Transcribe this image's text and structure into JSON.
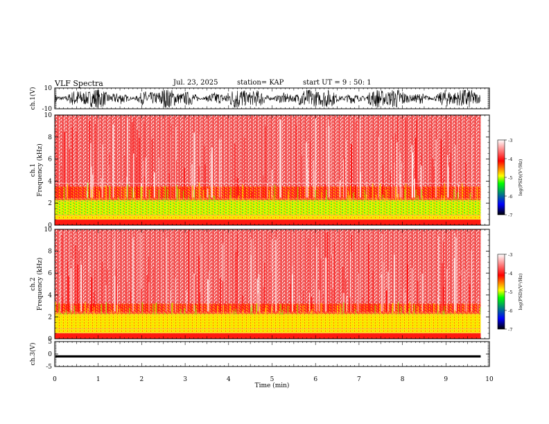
{
  "header": {
    "title": "VLF Spectra",
    "date": "Jul. 23, 2025",
    "station": "station= KAP",
    "start_ut": "start UT =  9 : 50: 1"
  },
  "colorbar": {
    "label": "log(PSD)(V²/Hz)",
    "ticks": [
      "-3",
      "-4",
      "-5",
      "-6",
      "-7"
    ],
    "colors": [
      "#ffffff",
      "#ff0000",
      "#ffff00",
      "#00ff00",
      "#0000ff",
      "#000000"
    ]
  },
  "chart_data": [
    {
      "type": "line",
      "panel": "ch.1 waveform",
      "ylabel": "ch.1(V)",
      "ylim": [
        -10,
        10
      ],
      "yticks": [
        "10",
        "-10"
      ],
      "xlim": [
        0,
        10
      ],
      "series": [
        {
          "name": "ch.1",
          "trace_color": "#000000",
          "span_v": [
            -9,
            8
          ]
        }
      ]
    },
    {
      "type": "heatmap",
      "panel": "ch.1 spectrogram",
      "ylabel": "ch.1 Frequency (kHz)",
      "ylim": [
        0,
        10
      ],
      "yticks": [
        "0",
        "2",
        "4",
        "6",
        "8",
        "10"
      ],
      "xlim": [
        0,
        10
      ],
      "data_end_min": 9.8,
      "band_khz": [
        [
          0,
          0.5,
          "red"
        ],
        [
          0.5,
          0.9,
          "yellow"
        ],
        [
          0.9,
          2.3,
          "yellow-green"
        ],
        [
          2.3,
          3.5,
          "red-yellow"
        ],
        [
          3.5,
          10,
          "white-red"
        ]
      ]
    },
    {
      "type": "heatmap",
      "panel": "ch.2 spectrogram",
      "ylabel": "ch.2 Frequency (kHz)",
      "ylim": [
        0,
        10
      ],
      "yticks": [
        "0",
        "2",
        "4",
        "6",
        "8",
        "10"
      ],
      "xlim": [
        0,
        10
      ],
      "data_end_min": 9.8,
      "band_khz": [
        [
          0,
          0.5,
          "red"
        ],
        [
          0.5,
          2.3,
          "yellow"
        ],
        [
          2.3,
          3.2,
          "red-yellow"
        ],
        [
          3.2,
          10,
          "white-red"
        ]
      ]
    },
    {
      "type": "line",
      "panel": "ch.3 waveform",
      "ylabel": "ch.3(V)",
      "ylim": [
        -5,
        5
      ],
      "yticks": [
        "5",
        "0",
        "-5"
      ],
      "xlim": [
        0,
        10
      ],
      "series": [
        {
          "name": "ch.3",
          "trace_color": "#000000",
          "span_v": [
            -1.4,
            -0.5
          ]
        }
      ]
    }
  ],
  "xaxis": {
    "label": "Time (min)",
    "ticks": [
      "0",
      "1",
      "2",
      "3",
      "4",
      "5",
      "6",
      "7",
      "8",
      "9",
      "10"
    ]
  }
}
